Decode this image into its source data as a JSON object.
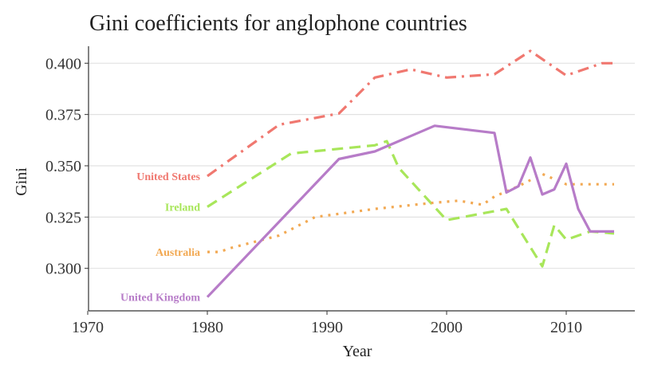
{
  "chart_data": {
    "type": "line",
    "title": "Gini coefficients for anglophone countries",
    "xlabel": "Year",
    "ylabel": "Gini",
    "xlim": [
      1970,
      2016
    ],
    "ylim": [
      0.28,
      0.412
    ],
    "xticks": [
      1970,
      1980,
      1990,
      2000,
      2010
    ],
    "yticks": [
      0.3,
      0.325,
      0.35,
      0.375,
      0.4
    ],
    "ytick_labels": [
      "0.300",
      "0.325",
      "0.350",
      "0.375",
      "0.400"
    ],
    "grid": "horizontal",
    "legend": "direct labels at left of lines",
    "series": [
      {
        "name": "United States",
        "color": "#f07870",
        "dash": "dashdot",
        "x": [
          1980,
          1986,
          1991,
          1994,
          1997,
          2000,
          2004,
          2007,
          2010,
          2013,
          2014
        ],
        "y": [
          0.345,
          0.37,
          0.3755,
          0.393,
          0.397,
          0.393,
          0.3946,
          0.406,
          0.394,
          0.4,
          0.4
        ]
      },
      {
        "name": "Ireland",
        "color": "#a8e65a",
        "dash": "dashed",
        "x": [
          1980,
          1987,
          1994,
          1995,
          1996,
          2000,
          2005,
          2008,
          2009,
          2010,
          2012,
          2014
        ],
        "y": [
          0.33,
          0.356,
          0.36,
          0.362,
          0.349,
          0.3235,
          0.329,
          0.301,
          0.321,
          0.314,
          0.318,
          0.317
        ]
      },
      {
        "name": "Australia",
        "color": "#f2a953",
        "dash": "dotted",
        "x": [
          1980,
          1981,
          1982,
          1986,
          1989,
          1994,
          1999,
          2001,
          2003,
          2004,
          2006,
          2008,
          2010,
          2014
        ],
        "y": [
          0.308,
          0.308,
          0.31,
          0.316,
          0.325,
          0.329,
          0.332,
          0.333,
          0.331,
          0.335,
          0.34,
          0.346,
          0.341,
          0.341
        ]
      },
      {
        "name": "United Kingdom",
        "color": "#b77cc8",
        "dash": "solid",
        "x": [
          1980,
          1991,
          1994,
          1999,
          2004,
          2005,
          2006,
          2007,
          2008,
          2009,
          2010,
          2011,
          2012,
          2014
        ],
        "y": [
          0.286,
          0.3533,
          0.357,
          0.3695,
          0.366,
          0.337,
          0.34,
          0.354,
          0.336,
          0.3385,
          0.351,
          0.329,
          0.318,
          0.318
        ]
      }
    ]
  }
}
